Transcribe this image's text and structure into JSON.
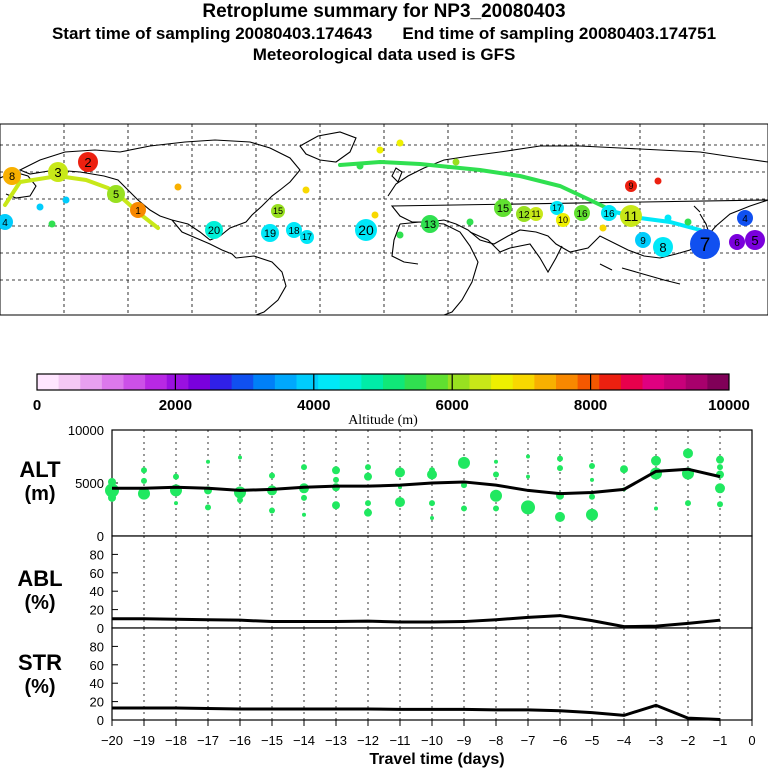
{
  "header": {
    "title": "Retroplume summary for NP3_20080403",
    "start_label": "Start time of sampling 20080403.174643",
    "end_label": "End time of sampling 20080403.174751",
    "met_label": "Meteorological data used is GFS"
  },
  "colorbar": {
    "colors": [
      "#ffe6ff",
      "#f4c8f4",
      "#e8a0f0",
      "#dc78ec",
      "#cc50e8",
      "#b828e4",
      "#9a10e0",
      "#7a00dc",
      "#3020e8",
      "#1050f0",
      "#0080f8",
      "#00a8fc",
      "#00ccfc",
      "#00e8f8",
      "#00f0d8",
      "#00eca8",
      "#10e878",
      "#30e050",
      "#60e030",
      "#98e020",
      "#c8e818",
      "#eef000",
      "#f8d800",
      "#f8b000",
      "#f88800",
      "#f45800",
      "#ec2010",
      "#e8004c",
      "#e00080",
      "#c8007a",
      "#a8006c",
      "#800058"
    ],
    "tick_labels": [
      "0",
      "2000",
      "4000",
      "6000",
      "8000",
      "10000"
    ],
    "label": "Altitude (m)"
  },
  "map_labels": [
    {
      "t": "8",
      "c": "#f8b000"
    },
    {
      "t": "4",
      "c": "#00ccfc"
    },
    {
      "t": "2",
      "c": "#ec2010"
    },
    {
      "t": "3",
      "c": "#c8e818"
    },
    {
      "t": "5",
      "c": "#98e020"
    },
    {
      "t": "1",
      "c": "#f88800"
    },
    {
      "t": "20",
      "c": "#00f0d8"
    },
    {
      "t": "19",
      "c": "#00e8f8"
    },
    {
      "t": "18",
      "c": "#00e8f8"
    },
    {
      "t": "17",
      "c": "#00e8f8"
    },
    {
      "t": "15",
      "c": "#98e020"
    },
    {
      "t": "20",
      "c": "#00e8f8"
    },
    {
      "t": "13",
      "c": "#30e050"
    },
    {
      "t": "15",
      "c": "#60e030"
    },
    {
      "t": "12",
      "c": "#98e020"
    },
    {
      "t": "11",
      "c": "#c8e818"
    },
    {
      "t": "16",
      "c": "#60e030"
    },
    {
      "t": "17",
      "c": "#00e8f8"
    },
    {
      "t": "10",
      "c": "#eef000"
    },
    {
      "t": "16",
      "c": "#00e8f8"
    },
    {
      "t": "11",
      "c": "#c8e818"
    },
    {
      "t": "9",
      "c": "#00ccfc"
    },
    {
      "t": "8",
      "c": "#00e8f8"
    },
    {
      "t": "7",
      "c": "#1050f0"
    },
    {
      "t": "6",
      "c": "#7a00dc"
    },
    {
      "t": "5",
      "c": "#7a00dc"
    },
    {
      "t": "9",
      "c": "#ec2010"
    },
    {
      "t": "4",
      "c": "#1050f0"
    }
  ],
  "chart_data": [
    {
      "type": "scatter",
      "panel": "ALT",
      "ylabel": "ALT (m)",
      "ylim": [
        0,
        10000
      ],
      "yticks": [
        0,
        5000,
        10000
      ],
      "xlim": [
        -20,
        0
      ],
      "line": {
        "x": [
          -20,
          -19,
          -18,
          -17,
          -16,
          -15,
          -14,
          -13,
          -12,
          -11,
          -10,
          -9,
          -8,
          -7,
          -6,
          -5,
          -4,
          -3,
          -2,
          -1
        ],
        "y": [
          4500,
          4500,
          4600,
          4500,
          4300,
          4400,
          4600,
          4700,
          4700,
          4800,
          5000,
          5100,
          4800,
          4300,
          4000,
          4100,
          4400,
          6100,
          6300,
          5600
        ]
      },
      "points": [
        {
          "x": -20,
          "y": 5100,
          "s": 4
        },
        {
          "x": -20,
          "y": 4300,
          "s": 7
        },
        {
          "x": -20,
          "y": 3600,
          "s": 4
        },
        {
          "x": -19,
          "y": 6200,
          "s": 3
        },
        {
          "x": -19,
          "y": 4000,
          "s": 6
        },
        {
          "x": -19,
          "y": 5200,
          "s": 3
        },
        {
          "x": -18,
          "y": 5600,
          "s": 3
        },
        {
          "x": -18,
          "y": 4300,
          "s": 6
        },
        {
          "x": -18,
          "y": 3100,
          "s": 2
        },
        {
          "x": -17,
          "y": 7000,
          "s": 2
        },
        {
          "x": -17,
          "y": 4300,
          "s": 4
        },
        {
          "x": -17,
          "y": 2700,
          "s": 3
        },
        {
          "x": -16,
          "y": 7400,
          "s": 2
        },
        {
          "x": -16,
          "y": 4100,
          "s": 6
        },
        {
          "x": -16,
          "y": 3400,
          "s": 3
        },
        {
          "x": -15,
          "y": 5700,
          "s": 3
        },
        {
          "x": -15,
          "y": 4300,
          "s": 5
        },
        {
          "x": -15,
          "y": 2400,
          "s": 3
        },
        {
          "x": -14,
          "y": 6500,
          "s": 3
        },
        {
          "x": -14,
          "y": 4500,
          "s": 5
        },
        {
          "x": -14,
          "y": 3600,
          "s": 3
        },
        {
          "x": -14,
          "y": 2000,
          "s": 2
        },
        {
          "x": -13,
          "y": 6200,
          "s": 4
        },
        {
          "x": -13,
          "y": 5300,
          "s": 3
        },
        {
          "x": -13,
          "y": 4600,
          "s": 4
        },
        {
          "x": -13,
          "y": 2900,
          "s": 4
        },
        {
          "x": -12,
          "y": 6500,
          "s": 3
        },
        {
          "x": -12,
          "y": 5600,
          "s": 4
        },
        {
          "x": -12,
          "y": 3100,
          "s": 3
        },
        {
          "x": -12,
          "y": 2200,
          "s": 4
        },
        {
          "x": -11,
          "y": 6000,
          "s": 5
        },
        {
          "x": -11,
          "y": 4600,
          "s": 2
        },
        {
          "x": -11,
          "y": 3200,
          "s": 5
        },
        {
          "x": -10,
          "y": 6200,
          "s": 3
        },
        {
          "x": -10,
          "y": 5800,
          "s": 5
        },
        {
          "x": -10,
          "y": 3100,
          "s": 3
        },
        {
          "x": -10,
          "y": 1700,
          "s": 2
        },
        {
          "x": -9,
          "y": 6900,
          "s": 6
        },
        {
          "x": -9,
          "y": 4800,
          "s": 3
        },
        {
          "x": -9,
          "y": 2600,
          "s": 3
        },
        {
          "x": -8,
          "y": 7000,
          "s": 2
        },
        {
          "x": -8,
          "y": 5800,
          "s": 3
        },
        {
          "x": -8,
          "y": 3800,
          "s": 6
        },
        {
          "x": -8,
          "y": 2600,
          "s": 3
        },
        {
          "x": -7,
          "y": 7500,
          "s": 2
        },
        {
          "x": -7,
          "y": 5600,
          "s": 2
        },
        {
          "x": -7,
          "y": 2700,
          "s": 7
        },
        {
          "x": -6,
          "y": 7300,
          "s": 3
        },
        {
          "x": -6,
          "y": 6400,
          "s": 3
        },
        {
          "x": -6,
          "y": 3800,
          "s": 4
        },
        {
          "x": -6,
          "y": 1800,
          "s": 5
        },
        {
          "x": -5,
          "y": 6600,
          "s": 3
        },
        {
          "x": -5,
          "y": 5300,
          "s": 2
        },
        {
          "x": -5,
          "y": 3700,
          "s": 3
        },
        {
          "x": -5,
          "y": 2000,
          "s": 6
        },
        {
          "x": -4,
          "y": 6300,
          "s": 4
        },
        {
          "x": -4,
          "y": 4400,
          "s": 2
        },
        {
          "x": -3,
          "y": 7100,
          "s": 5
        },
        {
          "x": -3,
          "y": 5900,
          "s": 6
        },
        {
          "x": -3,
          "y": 2600,
          "s": 2
        },
        {
          "x": -2,
          "y": 7800,
          "s": 5
        },
        {
          "x": -2,
          "y": 5900,
          "s": 6
        },
        {
          "x": -2,
          "y": 3100,
          "s": 3
        },
        {
          "x": -1,
          "y": 7200,
          "s": 4
        },
        {
          "x": -1,
          "y": 6500,
          "s": 3
        },
        {
          "x": -1,
          "y": 5800,
          "s": 4
        },
        {
          "x": -1,
          "y": 4500,
          "s": 5
        },
        {
          "x": -1,
          "y": 3000,
          "s": 3
        }
      ]
    },
    {
      "type": "line",
      "panel": "ABL",
      "ylabel": "ABL (%)",
      "ylim": [
        0,
        100
      ],
      "yticks": [
        0,
        20,
        40,
        60,
        80
      ],
      "xlim": [
        -20,
        0
      ],
      "x": [
        -20,
        -19,
        -18,
        -17,
        -16,
        -15,
        -14,
        -13,
        -12,
        -11,
        -10,
        -9,
        -8,
        -7,
        -6,
        -5,
        -4,
        -3,
        -2,
        -1
      ],
      "y": [
        10,
        10,
        9.5,
        9,
        8.5,
        7,
        7,
        7,
        7.5,
        6.5,
        6.5,
        7,
        9,
        11.5,
        13.5,
        8,
        1.5,
        2,
        5,
        8.5
      ]
    },
    {
      "type": "line",
      "panel": "STR",
      "ylabel": "STR (%)",
      "ylim": [
        0,
        100
      ],
      "yticks": [
        0,
        20,
        40,
        60,
        80
      ],
      "xlim": [
        -20,
        0
      ],
      "xticks": [
        -20,
        -19,
        -18,
        -17,
        -16,
        -15,
        -14,
        -13,
        -12,
        -11,
        -10,
        -9,
        -8,
        -7,
        -6,
        -5,
        -4,
        -3,
        -2,
        -1,
        0
      ],
      "xlabel": "Travel time (days)",
      "x": [
        -20,
        -19,
        -18,
        -17,
        -16,
        -15,
        -14,
        -13,
        -12,
        -11,
        -10,
        -9,
        -8,
        -7,
        -6,
        -5,
        -4,
        -3,
        -2,
        -1
      ],
      "y": [
        13,
        13,
        13,
        12.5,
        12,
        12,
        12,
        12,
        12,
        11.5,
        11.5,
        11.5,
        11,
        11,
        10,
        8,
        5,
        16,
        2,
        0.5
      ]
    }
  ]
}
